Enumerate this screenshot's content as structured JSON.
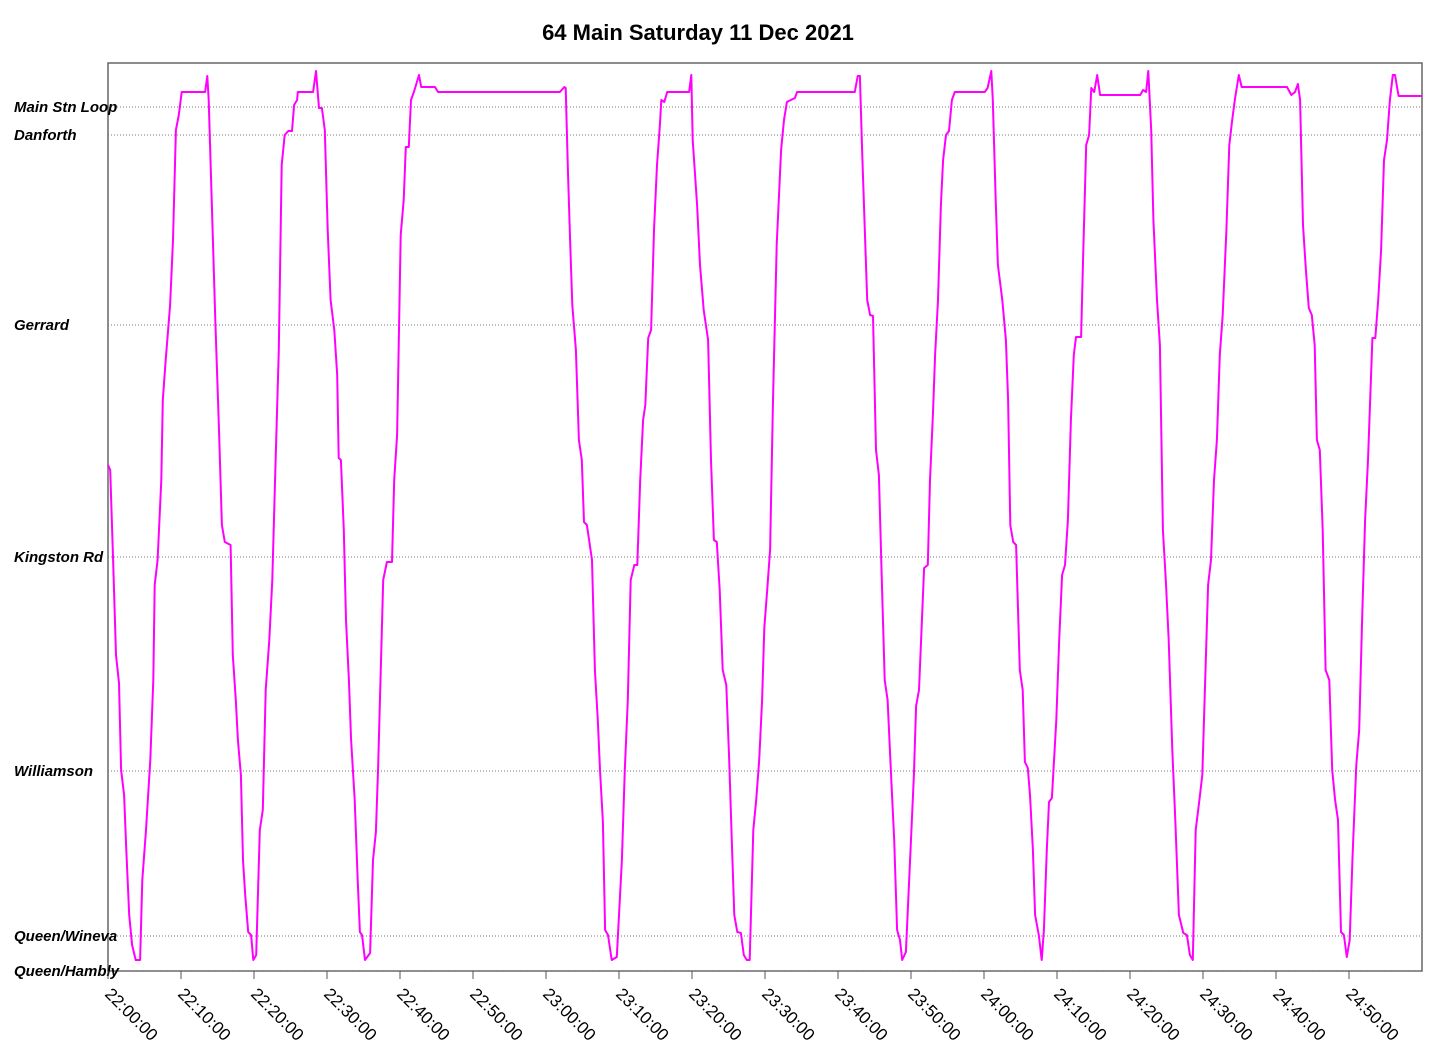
{
  "chart_data": {
    "type": "line",
    "title": "64 Main Saturday 11 Dec 2021",
    "color": "#ff00ff",
    "grid": true,
    "xlim": [
      1320,
      1500
    ],
    "xticks": [
      {
        "value": 1320,
        "label": "22:00:00"
      },
      {
        "value": 1330,
        "label": "22:10:00"
      },
      {
        "value": 1340,
        "label": "22:20:00"
      },
      {
        "value": 1350,
        "label": "22:30:00"
      },
      {
        "value": 1360,
        "label": "22:40:00"
      },
      {
        "value": 1370,
        "label": "22:50:00"
      },
      {
        "value": 1380,
        "label": "23:00:00"
      },
      {
        "value": 1390,
        "label": "23:10:00"
      },
      {
        "value": 1400,
        "label": "23:20:00"
      },
      {
        "value": 1410,
        "label": "23:30:00"
      },
      {
        "value": 1420,
        "label": "23:40:00"
      },
      {
        "value": 1430,
        "label": "23:50:00"
      },
      {
        "value": 1440,
        "label": "24:00:00"
      },
      {
        "value": 1450,
        "label": "24:10:00"
      },
      {
        "value": 1460,
        "label": "24:20:00"
      },
      {
        "value": 1470,
        "label": "24:30:00"
      },
      {
        "value": 1480,
        "label": "24:40:00"
      },
      {
        "value": 1490,
        "label": "24:50:00"
      }
    ],
    "ylim": [
      0,
      908
    ],
    "yticks": [
      {
        "value": 0,
        "label": "Queen/Hambly"
      },
      {
        "value": 35,
        "label": "Queen/Wineva"
      },
      {
        "value": 200,
        "label": "Williamson"
      },
      {
        "value": 414,
        "label": "Kingston Rd"
      },
      {
        "value": 646,
        "label": "Gerrard"
      },
      {
        "value": 836,
        "label": "Danforth"
      },
      {
        "value": 864,
        "label": "Main Stn Loop"
      }
    ],
    "x": [
      1320,
      1320.3,
      1320.7,
      1321.1,
      1321.5,
      1321.8,
      1322.2,
      1322.5,
      1322.9,
      1323.3,
      1323.8,
      1324.4,
      1324.7,
      1325.2,
      1325.8,
      1326.2,
      1326.4,
      1326.8,
      1327.3,
      1327.5,
      1327.9,
      1328.5,
      1328.9,
      1329.3,
      1329.7,
      1330.1,
      1333.3,
      1333.6,
      1333.8,
      1334.2,
      1334.7,
      1335.2,
      1335.6,
      1336.0,
      1336.8,
      1337.1,
      1337.5,
      1337.8,
      1338.2,
      1338.5,
      1338.8,
      1339.2,
      1339.6,
      1339.9,
      1340.3,
      1340.8,
      1341.2,
      1341.6,
      1342.1,
      1342.5,
      1342.9,
      1343.4,
      1343.8,
      1344.2,
      1344.7,
      1345.2,
      1345.5,
      1345.9,
      1346.0,
      1348.1,
      1348.5,
      1348.9,
      1349.3,
      1349.7,
      1350.1,
      1350.5,
      1351.0,
      1351.4,
      1351.6,
      1351.9,
      1352.3,
      1352.6,
      1353.0,
      1353.3,
      1353.8,
      1354.2,
      1354.5,
      1354.8,
      1355.2,
      1355.9,
      1356.3,
      1356.7,
      1357.0,
      1357.7,
      1358.2,
      1358.9,
      1359.2,
      1359.6,
      1360.1,
      1360.5,
      1360.8,
      1361.2,
      1361.5,
      1361.9,
      1362.6,
      1362.9,
      1364.8,
      1365.2,
      1381.9,
      1382.5,
      1382.7,
      1383.0,
      1383.3,
      1383.6,
      1384.1,
      1384.5,
      1384.9,
      1385.2,
      1385.6,
      1385.9,
      1386.3,
      1386.7,
      1387.1,
      1387.4,
      1387.8,
      1388.1,
      1388.5,
      1389.0,
      1389.7,
      1390.4,
      1390.8,
      1391.2,
      1391.6,
      1392.1,
      1392.5,
      1392.9,
      1393.3,
      1393.6,
      1394.0,
      1394.4,
      1394.8,
      1395.2,
      1395.6,
      1395.8,
      1396.2,
      1396.6,
      1399.6,
      1399.9,
      1400.1,
      1400.7,
      1401.1,
      1401.6,
      1402.2,
      1402.6,
      1403.0,
      1403.4,
      1403.8,
      1404.2,
      1404.7,
      1405.1,
      1405.5,
      1405.8,
      1406.2,
      1406.7,
      1407.1,
      1407.5,
      1407.9,
      1408.4,
      1408.8,
      1409.2,
      1409.6,
      1409.9,
      1410.3,
      1410.7,
      1411.1,
      1411.6,
      1412.2,
      1412.6,
      1413.0,
      1414.1,
      1414.4,
      1422.3,
      1422.7,
      1423.0,
      1423.3,
      1423.6,
      1424.0,
      1424.4,
      1424.8,
      1425.2,
      1425.6,
      1426.0,
      1426.4,
      1426.8,
      1427.3,
      1427.7,
      1428.1,
      1428.5,
      1428.8,
      1429.3,
      1429.9,
      1430.4,
      1430.7,
      1431.1,
      1431.8,
      1432.3,
      1432.6,
      1433.0,
      1433.3,
      1433.7,
      1434.1,
      1434.4,
      1434.8,
      1435.2,
      1435.6,
      1436.0,
      1440.1,
      1440.5,
      1441.0,
      1441.2,
      1441.6,
      1441.9,
      1442.5,
      1443.0,
      1443.3,
      1443.6,
      1444.0,
      1444.4,
      1444.9,
      1445.3,
      1445.6,
      1446.0,
      1446.3,
      1446.7,
      1447.0,
      1447.5,
      1447.9,
      1448.2,
      1448.6,
      1448.9,
      1449.3,
      1449.9,
      1450.3,
      1450.7,
      1451.1,
      1451.5,
      1451.9,
      1452.3,
      1452.6,
      1453.3,
      1453.6,
      1454.0,
      1454.4,
      1454.7,
      1455.1,
      1455.5,
      1455.9,
      1461.4,
      1461.8,
      1462.2,
      1462.5,
      1462.9,
      1463.2,
      1463.7,
      1464.1,
      1464.5,
      1464.9,
      1465.3,
      1465.8,
      1466.2,
      1466.7,
      1467.3,
      1467.8,
      1468.2,
      1468.6,
      1469.0,
      1469.5,
      1469.9,
      1470.3,
      1470.7,
      1471.1,
      1471.5,
      1471.9,
      1472.3,
      1472.7,
      1473.2,
      1473.6,
      1474.0,
      1474.4,
      1474.9,
      1475.3,
      1481.5,
      1482.1,
      1482.6,
      1483.0,
      1483.3,
      1483.7,
      1484.1,
      1484.5,
      1484.9,
      1485.3,
      1485.6,
      1486.0,
      1486.4,
      1486.8,
      1487.3,
      1487.7,
      1488.1,
      1488.5,
      1488.9,
      1489.3,
      1489.7,
      1490.1,
      1490.5,
      1491.0,
      1491.4,
      1491.8,
      1492.2,
      1492.6,
      1493.2,
      1493.6,
      1494.0,
      1494.4,
      1494.8,
      1495.2,
      1495.6,
      1496.0,
      1496.3,
      1496.8,
      1500
    ],
    "values": [
      506,
      501,
      411,
      316,
      288,
      201,
      176,
      121,
      56,
      26,
      11,
      11,
      91,
      141,
      211,
      291,
      386,
      411,
      491,
      571,
      611,
      666,
      731,
      841,
      856,
      879,
      879,
      895,
      871,
      771,
      651,
      541,
      446,
      429,
      426,
      316,
      271,
      231,
      196,
      111,
      76,
      39,
      36,
      11,
      16,
      141,
      161,
      281,
      331,
      391,
      496,
      621,
      806,
      836,
      840,
      840,
      866,
      871,
      879,
      879,
      900,
      863,
      863,
      841,
      741,
      671,
      641,
      596,
      513,
      511,
      441,
      351,
      291,
      231,
      171,
      91,
      39,
      36,
      11,
      18,
      111,
      139,
      203,
      391,
      409,
      409,
      491,
      536,
      736,
      771,
      824,
      824,
      871,
      879,
      896,
      884,
      884,
      879,
      879,
      884,
      883,
      801,
      731,
      666,
      621,
      531,
      511,
      449,
      446,
      431,
      411,
      301,
      251,
      201,
      149,
      41,
      36,
      11,
      14,
      111,
      201,
      271,
      391,
      406,
      406,
      491,
      551,
      566,
      633,
      641,
      741,
      806,
      846,
      871,
      869,
      879,
      879,
      896,
      831,
      766,
      706,
      661,
      631,
      511,
      431,
      429,
      381,
      301,
      286,
      211,
      121,
      56,
      39,
      38,
      16,
      11,
      11,
      141,
      171,
      211,
      271,
      343,
      381,
      421,
      571,
      726,
      821,
      851,
      869,
      873,
      879,
      879,
      895,
      895,
      821,
      756,
      671,
      656,
      655,
      521,
      496,
      391,
      291,
      271,
      191,
      131,
      41,
      31,
      11,
      19,
      116,
      196,
      265,
      281,
      403,
      406,
      491,
      556,
      616,
      671,
      766,
      811,
      836,
      840,
      871,
      879,
      879,
      883,
      900,
      871,
      771,
      706,
      671,
      631,
      571,
      446,
      429,
      426,
      301,
      281,
      209,
      203,
      176,
      121,
      56,
      36,
      11,
      41,
      121,
      169,
      173,
      251,
      331,
      396,
      406,
      451,
      551,
      616,
      634,
      634,
      721,
      826,
      836,
      883,
      879,
      896,
      876,
      876,
      881,
      879,
      900,
      841,
      751,
      671,
      626,
      441,
      391,
      331,
      221,
      151,
      56,
      38,
      36,
      16,
      11,
      141,
      171,
      196,
      291,
      386,
      411,
      491,
      531,
      616,
      656,
      741,
      826,
      851,
      873,
      896,
      884,
      884,
      876,
      879,
      887,
      871,
      746,
      701,
      663,
      656,
      626,
      531,
      521,
      441,
      301,
      291,
      201,
      171,
      151,
      39,
      36,
      14,
      31,
      116,
      206,
      241,
      351,
      451,
      511,
      633,
      633,
      671,
      721,
      811,
      831,
      871,
      896,
      896,
      875,
      875
    ]
  }
}
